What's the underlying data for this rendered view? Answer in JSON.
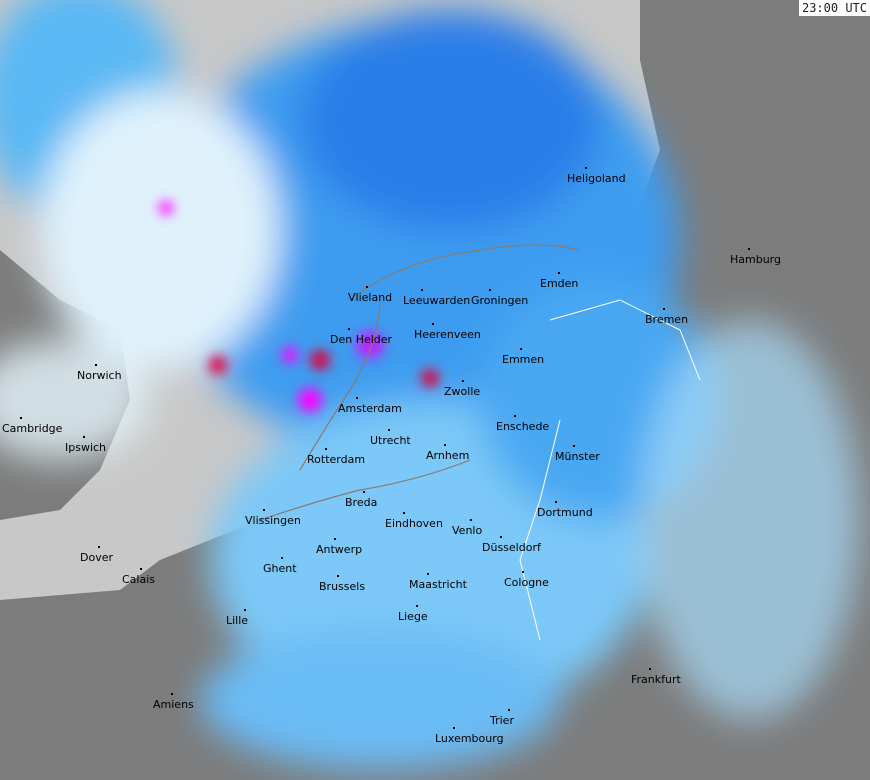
{
  "timestamp": "23:00 UTC",
  "colors": {
    "sea": "#c8c8c8",
    "land": "#808080",
    "light_precip": "#dff4ff",
    "moderate_precip": "#3ca0f0",
    "heavy_precip": "#1e6ee6",
    "intense": "#ff00ff",
    "extreme": "#e00020"
  },
  "cities": [
    "Heligoland",
    "Hamburg",
    "Emden",
    "Bremen",
    "Vlieland",
    "Leeuwarden",
    "Groningen",
    "Den Helder",
    "Heerenveen",
    "Emmen",
    "Zwolle",
    "Norwich",
    "Amsterdam",
    "Enschede",
    "Cambridge",
    "Utrecht",
    "Ipswich",
    "Rotterdam",
    "Arnhem",
    "Münster",
    "Breda",
    "Dortmund",
    "Vlissingen",
    "Eindhoven",
    "Venlo",
    "Düsseldorf",
    "Antwerp",
    "Dover",
    "Ghent",
    "Calais",
    "Brussels",
    "Maastricht",
    "Cologne",
    "Liege",
    "Lille",
    "Frankfurt",
    "Amiens",
    "Trier",
    "Luxembourg"
  ]
}
